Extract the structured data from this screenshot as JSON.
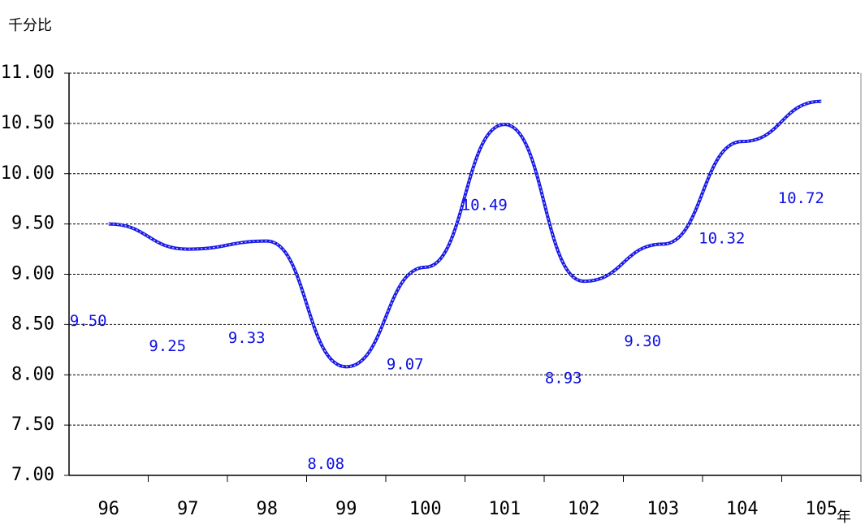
{
  "chart_data": {
    "type": "line",
    "y_label": "千分比",
    "x_label": "年",
    "categories": [
      "96",
      "97",
      "98",
      "99",
      "100",
      "101",
      "102",
      "103",
      "104",
      "105"
    ],
    "values": [
      9.5,
      9.25,
      9.33,
      8.08,
      9.07,
      10.49,
      8.93,
      9.3,
      10.32,
      10.72
    ],
    "value_labels": [
      "9.50",
      "9.25",
      "9.33",
      "8.08",
      "9.07",
      "10.49",
      "8.93",
      "9.30",
      "10.32",
      "10.72"
    ],
    "color": "#1a1ae6",
    "ylim": [
      7,
      11
    ],
    "yticks": [
      {
        "value": 7,
        "label": "7.00"
      },
      {
        "value": 7.5,
        "label": "7.50"
      },
      {
        "value": 8,
        "label": "8.00"
      },
      {
        "value": 8.5,
        "label": "8.50"
      },
      {
        "value": 9,
        "label": "9.00"
      },
      {
        "value": 9.5,
        "label": "9.50"
      },
      {
        "value": 10,
        "label": "10.00"
      },
      {
        "value": 10.5,
        "label": "10.50"
      },
      {
        "value": 11,
        "label": "11.00"
      }
    ],
    "grid": true
  }
}
